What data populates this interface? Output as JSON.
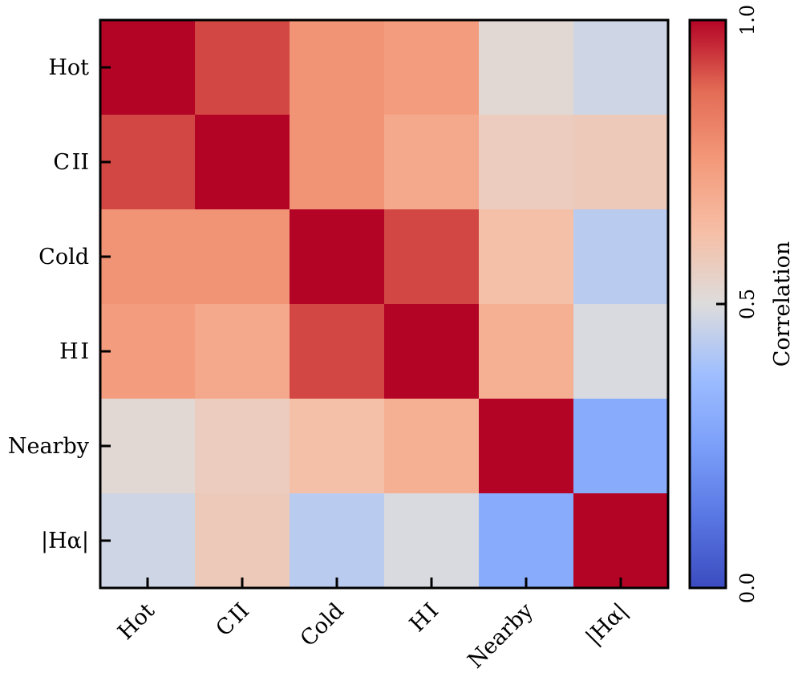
{
  "chart_data": {
    "type": "heatmap",
    "title": "",
    "xlabel": "",
    "ylabel": "",
    "categories_x": [
      "Hot",
      "C II",
      "Cold",
      "H I",
      "Nearby",
      "|Hα|"
    ],
    "categories_y": [
      "Hot",
      "C II",
      "Cold",
      "H I",
      "Nearby",
      "|Hα|"
    ],
    "values": [
      [
        1.0,
        0.92,
        0.77,
        0.74,
        0.52,
        0.47
      ],
      [
        0.92,
        1.0,
        0.77,
        0.7,
        0.57,
        0.58
      ],
      [
        0.77,
        0.77,
        1.0,
        0.92,
        0.62,
        0.43
      ],
      [
        0.74,
        0.7,
        0.92,
        1.0,
        0.68,
        0.49
      ],
      [
        0.52,
        0.57,
        0.62,
        0.68,
        1.0,
        0.3
      ],
      [
        0.47,
        0.58,
        0.43,
        0.49,
        0.3,
        1.0
      ]
    ],
    "colormap": "coolwarm",
    "vmin": 0.0,
    "vmax": 1.0,
    "colorbar": {
      "label": "Correlation",
      "ticks": [
        0.0,
        0.5,
        1.0
      ],
      "tick_labels": [
        "0.0",
        "0.5",
        "1.0"
      ]
    }
  }
}
